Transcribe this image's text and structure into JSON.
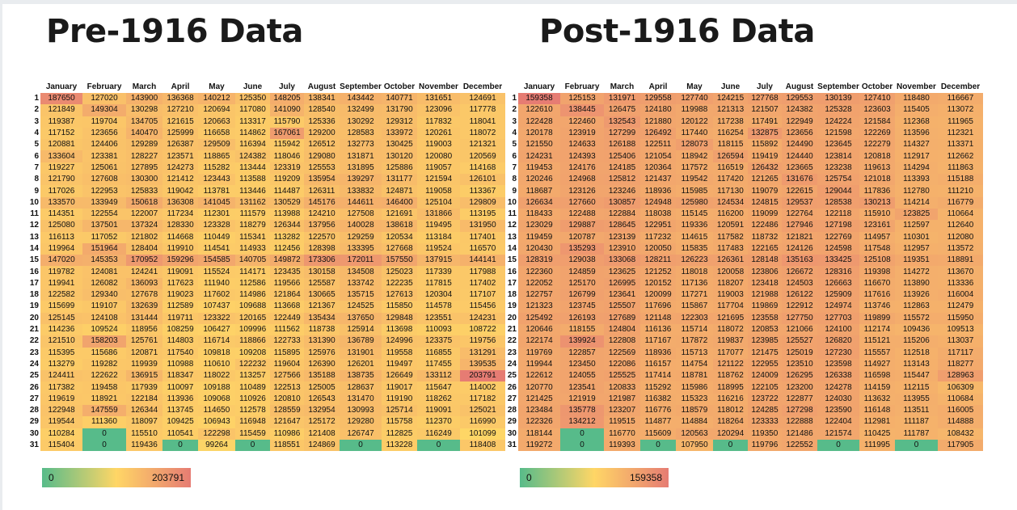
{
  "chart_data": [
    {
      "type": "heatmap",
      "title": "Pre-1916 Data",
      "columns": [
        "January",
        "February",
        "March",
        "April",
        "May",
        "June",
        "July",
        "August",
        "September",
        "October",
        "November",
        "December"
      ],
      "rows": [
        "1",
        "2",
        "3",
        "4",
        "5",
        "6",
        "7",
        "8",
        "9",
        "10",
        "11",
        "12",
        "13",
        "14",
        "15",
        "16",
        "17",
        "18",
        "19",
        "20",
        "21",
        "22",
        "23",
        "24",
        "25",
        "26",
        "27",
        "28",
        "29",
        "30",
        "31"
      ],
      "values": [
        [
          187650,
          127020,
          143900,
          136368,
          140212,
          125350,
          148205,
          138341,
          143442,
          140771,
          131651,
          124691
        ],
        [
          121849,
          149304,
          130298,
          127210,
          120694,
          117080,
          141090,
          128540,
          132499,
          131790,
          123096,
          117778
        ],
        [
          119387,
          119704,
          134705,
          121615,
          120663,
          113317,
          115790,
          125336,
          130292,
          129312,
          117832,
          118041
        ],
        [
          117152,
          123656,
          140470,
          125999,
          116658,
          114862,
          167061,
          129200,
          128583,
          133972,
          120261,
          118072
        ],
        [
          120881,
          124406,
          129289,
          126387,
          129509,
          116394,
          115942,
          126512,
          132773,
          130425,
          119003,
          121321
        ],
        [
          133604,
          123381,
          128227,
          123571,
          118865,
          124382,
          118046,
          129080,
          131871,
          130120,
          120080,
          120569
        ],
        [
          119227,
          125061,
          127895,
          124273,
          115282,
          113444,
          123319,
          125553,
          131895,
          125886,
          119057,
          114168
        ],
        [
          121790,
          127608,
          130300,
          121412,
          123443,
          113588,
          119209,
          135954,
          139297,
          131177,
          121594,
          126101
        ],
        [
          117026,
          122953,
          125833,
          119042,
          113781,
          113446,
          114487,
          126311,
          133832,
          124871,
          119058,
          113367
        ],
        [
          133570,
          133949,
          150618,
          136308,
          141045,
          131162,
          130529,
          145176,
          144611,
          146400,
          125104,
          129809
        ],
        [
          114351,
          122554,
          122007,
          117234,
          112301,
          111579,
          113988,
          124210,
          127508,
          121691,
          131866,
          113195
        ],
        [
          125080,
          137501,
          137324,
          128330,
          123328,
          118279,
          126344,
          137956,
          140028,
          138618,
          119495,
          131950
        ],
        [
          116113,
          117052,
          121802,
          114668,
          110449,
          115341,
          113282,
          122570,
          129259,
          120534,
          113184,
          117401
        ],
        [
          119964,
          151964,
          128404,
          119910,
          114541,
          114933,
          112456,
          128398,
          133395,
          127668,
          119524,
          116570
        ],
        [
          147020,
          145353,
          170952,
          159296,
          154585,
          140705,
          149872,
          173306,
          172011,
          157550,
          137915,
          144141
        ],
        [
          119782,
          124081,
          124241,
          119091,
          115524,
          114171,
          123435,
          130158,
          134508,
          125023,
          117339,
          117988
        ],
        [
          119941,
          126082,
          136093,
          117623,
          111940,
          112586,
          119566,
          125587,
          133742,
          122235,
          117815,
          117402
        ],
        [
          122582,
          129340,
          127678,
          119023,
          117602,
          114986,
          121864,
          130665,
          135715,
          127613,
          120304,
          117107
        ],
        [
          115699,
          119107,
          132639,
          112589,
          107437,
          109688,
          113668,
          121367,
          124525,
          115850,
          114578,
          115456
        ],
        [
          125145,
          124108,
          131444,
          119711,
          123322,
          120165,
          122449,
          135434,
          137650,
          129848,
          123551,
          124231
        ],
        [
          114236,
          109524,
          118956,
          108259,
          106427,
          109996,
          111562,
          118738,
          125914,
          113698,
          110093,
          108722
        ],
        [
          121510,
          158203,
          125761,
          114803,
          116714,
          118866,
          122733,
          131390,
          136789,
          124996,
          123375,
          119756
        ],
        [
          115395,
          115686,
          120871,
          117540,
          109818,
          109208,
          115895,
          125976,
          131901,
          119558,
          116855,
          131291
        ],
        [
          113279,
          119282,
          119939,
          110988,
          110610,
          122232,
          119604,
          126390,
          126201,
          119497,
          117455,
          139535
        ],
        [
          124411,
          122622,
          136915,
          118347,
          118022,
          113257,
          127566,
          135188,
          138735,
          126649,
          133112,
          203791
        ],
        [
          117382,
          119458,
          117939,
          110097,
          109188,
          110489,
          122513,
          125005,
          128637,
          119017,
          115647,
          114002
        ],
        [
          119619,
          118921,
          122184,
          113936,
          109068,
          110926,
          120810,
          126543,
          131470,
          119190,
          118262,
          117182
        ],
        [
          122948,
          147559,
          126344,
          113745,
          114650,
          112578,
          128559,
          132954,
          130993,
          125714,
          119091,
          125021
        ],
        [
          119544,
          111360,
          118097,
          109425,
          106943,
          116948,
          121647,
          125172,
          129280,
          115758,
          112370,
          116990
        ],
        [
          110284,
          0,
          115510,
          110541,
          122298,
          115459,
          110986,
          121408,
          126747,
          112825,
          116249,
          101099
        ],
        [
          115404,
          0,
          119436,
          0,
          99264,
          0,
          118551,
          124869,
          0,
          113228,
          0,
          118408
        ]
      ],
      "color_min": 0,
      "color_max": 203791,
      "legend_min_label": "0",
      "legend_max_label": "203791"
    },
    {
      "type": "heatmap",
      "title": "Post-1916 Data",
      "columns": [
        "January",
        "February",
        "March",
        "April",
        "May",
        "June",
        "July",
        "August",
        "September",
        "October",
        "November",
        "December"
      ],
      "rows": [
        "1",
        "2",
        "3",
        "4",
        "5",
        "6",
        "7",
        "8",
        "9",
        "10",
        "11",
        "12",
        "13",
        "14",
        "15",
        "16",
        "17",
        "18",
        "19",
        "20",
        "21",
        "22",
        "23",
        "24",
        "25",
        "26",
        "27",
        "28",
        "29",
        "30",
        "31"
      ],
      "values": [
        [
          159358,
          125153,
          131971,
          129558,
          127740,
          124215,
          127768,
          129553,
          130139,
          127410,
          118480,
          116667
        ],
        [
          122610,
          138445,
          126475,
          124180,
          119988,
          121313,
          121507,
          124382,
          125328,
          123603,
          115405,
          113072
        ],
        [
          122428,
          122460,
          132543,
          121880,
          120122,
          117238,
          117491,
          122949,
          124224,
          121584,
          112368,
          111965
        ],
        [
          120178,
          123919,
          127299,
          126492,
          117440,
          116254,
          132875,
          123656,
          121598,
          122269,
          113596,
          112321
        ],
        [
          121550,
          124633,
          126188,
          122511,
          128073,
          118115,
          115892,
          124490,
          123645,
          122279,
          114327,
          113371
        ],
        [
          124231,
          124393,
          125406,
          121054,
          118942,
          126594,
          119419,
          124440,
          123814,
          120818,
          112917,
          112662
        ],
        [
          119453,
          124176,
          124185,
          120364,
          117572,
          116519,
          126432,
          123665,
          123238,
          119613,
          114294,
          111863
        ],
        [
          120246,
          124968,
          125812,
          121437,
          119542,
          117420,
          121265,
          131676,
          125754,
          121018,
          113393,
          115188
        ],
        [
          118687,
          123126,
          123246,
          118936,
          115985,
          117130,
          119079,
          122615,
          129044,
          117836,
          112780,
          111210
        ],
        [
          126634,
          127660,
          130857,
          124948,
          125980,
          124534,
          124815,
          129537,
          128538,
          130213,
          114214,
          116779
        ],
        [
          118433,
          122488,
          122884,
          118038,
          115145,
          116200,
          119099,
          122764,
          122118,
          115910,
          123825,
          110664
        ],
        [
          123029,
          129887,
          128645,
          122951,
          119336,
          120591,
          122486,
          127946,
          127198,
          123161,
          112597,
          112640
        ],
        [
          119459,
          120787,
          123139,
          117232,
          114615,
          117582,
          118732,
          121821,
          122769,
          114957,
          110301,
          112080
        ],
        [
          120430,
          135293,
          123910,
          120050,
          115835,
          117483,
          122165,
          124126,
          124598,
          117548,
          112957,
          113572
        ],
        [
          128319,
          129038,
          133068,
          128211,
          126223,
          126361,
          128148,
          135163,
          133425,
          125108,
          119351,
          118891
        ],
        [
          122360,
          124859,
          123625,
          121252,
          118018,
          120058,
          123806,
          126672,
          128316,
          119398,
          114272,
          113670
        ],
        [
          122052,
          125170,
          126995,
          120152,
          117136,
          118207,
          123418,
          124503,
          126663,
          116670,
          113890,
          113336
        ],
        [
          122757,
          126799,
          123641,
          120099,
          117271,
          119003,
          121988,
          126122,
          125909,
          117616,
          113926,
          116004
        ],
        [
          121323,
          123745,
          125507,
          117696,
          115867,
          117704,
          119869,
          122912,
          124974,
          113746,
          112863,
          112479
        ],
        [
          125492,
          126193,
          127689,
          121148,
          122303,
          121695,
          123558,
          127750,
          127703,
          119899,
          115572,
          115950
        ],
        [
          120646,
          118155,
          124804,
          116136,
          115714,
          118072,
          120853,
          121066,
          124100,
          112174,
          109436,
          109513
        ],
        [
          122174,
          139924,
          122808,
          117167,
          117872,
          119837,
          123985,
          125527,
          126820,
          115121,
          115206,
          113037
        ],
        [
          119769,
          122857,
          122569,
          118936,
          115713,
          117077,
          121475,
          125019,
          127230,
          115557,
          112518,
          117117
        ],
        [
          119944,
          123450,
          122086,
          116157,
          114754,
          121122,
          122955,
          123510,
          123598,
          114927,
          113143,
          118277
        ],
        [
          122612,
          124055,
          125525,
          117414,
          118781,
          118762,
          124009,
          126295,
          126338,
          116598,
          115447,
          128963
        ],
        [
          120770,
          123541,
          120833,
          115292,
          115986,
          118995,
          122105,
          123200,
          124278,
          114159,
          112115,
          106309
        ],
        [
          121425,
          121919,
          121987,
          116382,
          115323,
          116216,
          123722,
          122877,
          124030,
          113632,
          113955,
          110684
        ],
        [
          123484,
          135778,
          123207,
          116776,
          118579,
          118012,
          124285,
          127298,
          123590,
          116148,
          113511,
          116005
        ],
        [
          122326,
          134212,
          119515,
          114877,
          114884,
          118264,
          123333,
          122888,
          122404,
          112981,
          111187,
          114888
        ],
        [
          118144,
          0,
          116770,
          115609,
          120563,
          120294,
          119350,
          121486,
          121574,
          110425,
          111787,
          108432
        ],
        [
          119272,
          0,
          119393,
          0,
          107950,
          0,
          119796,
          122552,
          0,
          111995,
          0,
          117905
        ]
      ],
      "color_min": 0,
      "color_max": 159358,
      "legend_min_label": "0",
      "legend_max_label": "159358"
    }
  ],
  "scale_colors": {
    "low": "#57bb8a",
    "mid": "#ffd666",
    "high": "#e67c73"
  }
}
